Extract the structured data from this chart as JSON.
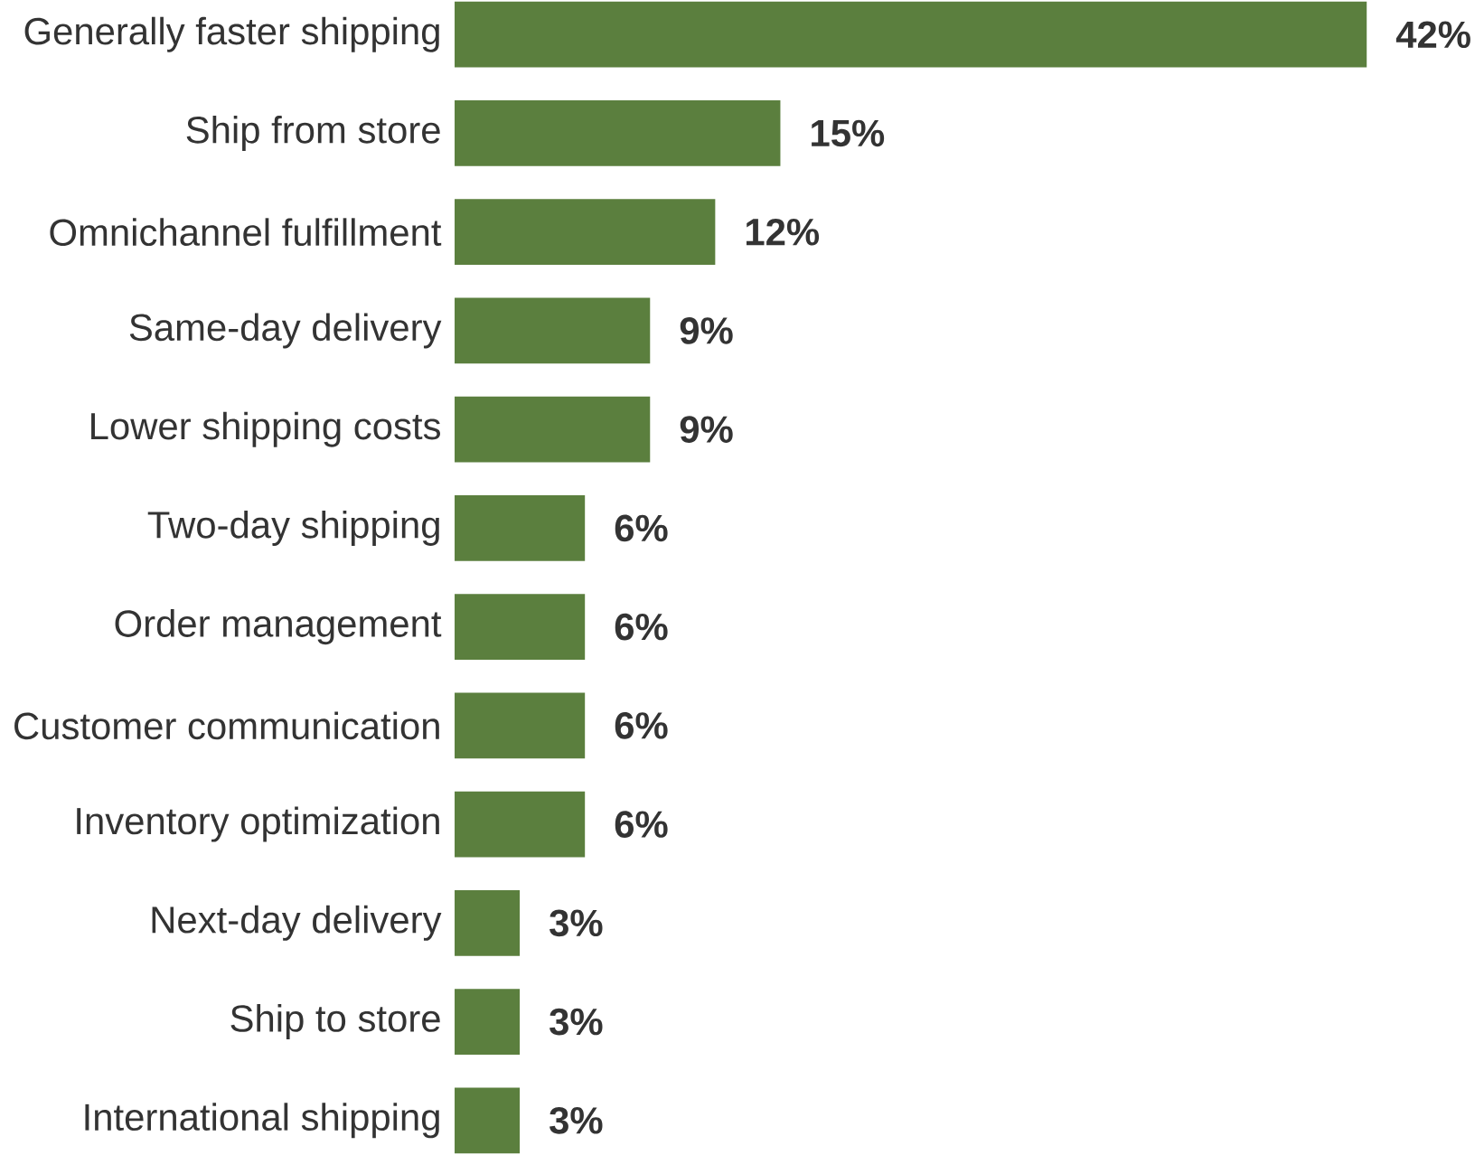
{
  "chart_data": {
    "type": "bar",
    "orientation": "horizontal",
    "categories": [
      "Generally faster shipping",
      "Ship from store",
      "Omnichannel fulfillment",
      "Same-day delivery",
      "Lower shipping costs",
      "Two-day shipping",
      "Order management",
      "Customer communication",
      "Inventory optimization",
      "Next-day delivery",
      "Ship to store",
      "International shipping"
    ],
    "values": [
      42,
      15,
      12,
      9,
      9,
      6,
      6,
      6,
      6,
      3,
      3,
      3
    ],
    "value_labels": [
      "42%",
      "15%",
      "12%",
      "9%",
      "9%",
      "6%",
      "6%",
      "6%",
      "6%",
      "3%",
      "3%",
      "3%"
    ],
    "color": "#5b7f3e"
  }
}
